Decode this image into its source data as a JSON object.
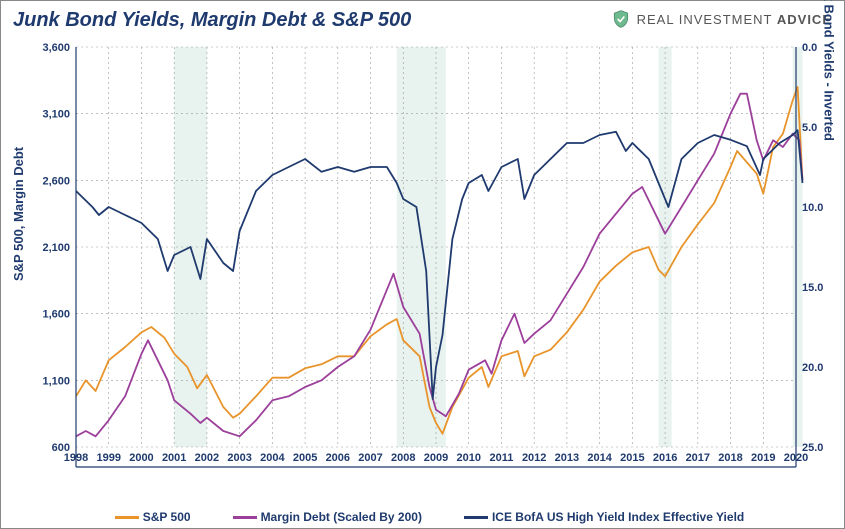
{
  "title": "Junk Bond Yields, Margin Debt & S&P 500",
  "logo": {
    "text": "REAL INVESTMENT ADVICE",
    "bold_word": "ADVICE"
  },
  "chart": {
    "type": "line",
    "background_color": "#ffffff",
    "shaded_color": "#e8f2ee",
    "grid_color": "#999999",
    "axis_color": "#1f3a6e",
    "x": {
      "min": 1998,
      "max": 2020,
      "step": 1,
      "labels": [
        1998,
        1999,
        2000,
        2001,
        2002,
        2003,
        2004,
        2005,
        2006,
        2007,
        2008,
        2009,
        2010,
        2011,
        2012,
        2013,
        2014,
        2015,
        2016,
        2017,
        2018,
        2019,
        2020
      ]
    },
    "y_left": {
      "label": "S&P 500, Margin Debt",
      "min": 600,
      "max": 3600,
      "step": 500,
      "ticks": [
        600,
        1100,
        1600,
        2100,
        2600,
        3100,
        3600
      ]
    },
    "y_right": {
      "label": "Junk Bond Yields - Inverted",
      "min_display": 0.0,
      "max_display": 25.0,
      "step": 5.0,
      "ticks": [
        0.0,
        5.0,
        10.0,
        15.0,
        20.0,
        25.0
      ],
      "inverted": true
    },
    "shaded_ranges": [
      [
        2001.0,
        2002.0
      ],
      [
        2007.8,
        2009.3
      ],
      [
        2015.8,
        2016.2
      ],
      [
        2019.9,
        2020.2
      ]
    ],
    "series": [
      {
        "name": "S&P 500",
        "axis": "left",
        "color": "#e8942b",
        "width": 1.8,
        "points": [
          [
            1998.0,
            980
          ],
          [
            1998.3,
            1100
          ],
          [
            1998.6,
            1020
          ],
          [
            1999.0,
            1250
          ],
          [
            1999.5,
            1350
          ],
          [
            2000.0,
            1460
          ],
          [
            2000.3,
            1500
          ],
          [
            2000.7,
            1420
          ],
          [
            2001.0,
            1300
          ],
          [
            2001.4,
            1200
          ],
          [
            2001.7,
            1040
          ],
          [
            2002.0,
            1140
          ],
          [
            2002.5,
            900
          ],
          [
            2002.8,
            820
          ],
          [
            2003.0,
            850
          ],
          [
            2003.5,
            980
          ],
          [
            2004.0,
            1120
          ],
          [
            2004.5,
            1120
          ],
          [
            2005.0,
            1190
          ],
          [
            2005.5,
            1220
          ],
          [
            2006.0,
            1280
          ],
          [
            2006.5,
            1280
          ],
          [
            2007.0,
            1430
          ],
          [
            2007.5,
            1520
          ],
          [
            2007.8,
            1560
          ],
          [
            2008.0,
            1400
          ],
          [
            2008.5,
            1280
          ],
          [
            2008.8,
            900
          ],
          [
            2009.0,
            780
          ],
          [
            2009.2,
            700
          ],
          [
            2009.5,
            900
          ],
          [
            2010.0,
            1120
          ],
          [
            2010.4,
            1200
          ],
          [
            2010.6,
            1050
          ],
          [
            2011.0,
            1280
          ],
          [
            2011.5,
            1320
          ],
          [
            2011.7,
            1130
          ],
          [
            2012.0,
            1280
          ],
          [
            2012.5,
            1330
          ],
          [
            2013.0,
            1460
          ],
          [
            2013.5,
            1630
          ],
          [
            2014.0,
            1840
          ],
          [
            2014.5,
            1960
          ],
          [
            2015.0,
            2060
          ],
          [
            2015.5,
            2100
          ],
          [
            2015.8,
            1930
          ],
          [
            2016.0,
            1880
          ],
          [
            2016.5,
            2100
          ],
          [
            2017.0,
            2270
          ],
          [
            2017.5,
            2430
          ],
          [
            2018.0,
            2700
          ],
          [
            2018.2,
            2820
          ],
          [
            2018.8,
            2650
          ],
          [
            2019.0,
            2500
          ],
          [
            2019.3,
            2850
          ],
          [
            2019.6,
            2950
          ],
          [
            2019.9,
            3200
          ],
          [
            2020.05,
            3300
          ],
          [
            2020.2,
            2600
          ]
        ]
      },
      {
        "name": "Margin Debt (Scaled By 200)",
        "axis": "left",
        "color": "#9b3f9b",
        "width": 1.8,
        "points": [
          [
            1998.0,
            680
          ],
          [
            1998.3,
            720
          ],
          [
            1998.6,
            680
          ],
          [
            1999.0,
            800
          ],
          [
            1999.5,
            980
          ],
          [
            2000.0,
            1300
          ],
          [
            2000.2,
            1400
          ],
          [
            2000.5,
            1250
          ],
          [
            2000.8,
            1100
          ],
          [
            2001.0,
            950
          ],
          [
            2001.5,
            850
          ],
          [
            2001.8,
            780
          ],
          [
            2002.0,
            820
          ],
          [
            2002.5,
            720
          ],
          [
            2003.0,
            680
          ],
          [
            2003.5,
            800
          ],
          [
            2004.0,
            950
          ],
          [
            2004.5,
            980
          ],
          [
            2005.0,
            1050
          ],
          [
            2005.5,
            1100
          ],
          [
            2006.0,
            1200
          ],
          [
            2006.5,
            1280
          ],
          [
            2007.0,
            1480
          ],
          [
            2007.5,
            1780
          ],
          [
            2007.7,
            1900
          ],
          [
            2008.0,
            1650
          ],
          [
            2008.5,
            1450
          ],
          [
            2008.8,
            1050
          ],
          [
            2009.0,
            880
          ],
          [
            2009.3,
            830
          ],
          [
            2009.7,
            1000
          ],
          [
            2010.0,
            1180
          ],
          [
            2010.5,
            1250
          ],
          [
            2010.7,
            1150
          ],
          [
            2011.0,
            1400
          ],
          [
            2011.4,
            1600
          ],
          [
            2011.7,
            1380
          ],
          [
            2012.0,
            1450
          ],
          [
            2012.5,
            1550
          ],
          [
            2013.0,
            1750
          ],
          [
            2013.5,
            1950
          ],
          [
            2014.0,
            2200
          ],
          [
            2014.5,
            2350
          ],
          [
            2015.0,
            2500
          ],
          [
            2015.3,
            2550
          ],
          [
            2015.8,
            2300
          ],
          [
            2016.0,
            2200
          ],
          [
            2016.5,
            2400
          ],
          [
            2017.0,
            2600
          ],
          [
            2017.5,
            2800
          ],
          [
            2018.0,
            3100
          ],
          [
            2018.3,
            3250
          ],
          [
            2018.5,
            3250
          ],
          [
            2018.8,
            2900
          ],
          [
            2019.0,
            2750
          ],
          [
            2019.3,
            2900
          ],
          [
            2019.6,
            2850
          ],
          [
            2019.9,
            2950
          ],
          [
            2020.1,
            2900
          ],
          [
            2020.2,
            2600
          ]
        ]
      },
      {
        "name": "ICE BofA US High Yield Index Effective Yield",
        "axis": "right",
        "color": "#1f3a6e",
        "width": 1.8,
        "points": [
          [
            1998.0,
            9.0
          ],
          [
            1998.5,
            10.0
          ],
          [
            1998.7,
            10.5
          ],
          [
            1999.0,
            10.0
          ],
          [
            1999.5,
            10.5
          ],
          [
            2000.0,
            11.0
          ],
          [
            2000.5,
            12.0
          ],
          [
            2000.8,
            14.0
          ],
          [
            2001.0,
            13.0
          ],
          [
            2001.5,
            12.5
          ],
          [
            2001.8,
            14.5
          ],
          [
            2002.0,
            12.0
          ],
          [
            2002.5,
            13.5
          ],
          [
            2002.8,
            14.0
          ],
          [
            2003.0,
            11.5
          ],
          [
            2003.5,
            9.0
          ],
          [
            2004.0,
            8.0
          ],
          [
            2004.5,
            7.5
          ],
          [
            2005.0,
            7.0
          ],
          [
            2005.5,
            7.8
          ],
          [
            2006.0,
            7.5
          ],
          [
            2006.5,
            7.8
          ],
          [
            2007.0,
            7.5
          ],
          [
            2007.5,
            7.5
          ],
          [
            2007.8,
            8.5
          ],
          [
            2008.0,
            9.5
          ],
          [
            2008.4,
            10.0
          ],
          [
            2008.7,
            14.0
          ],
          [
            2008.9,
            22.0
          ],
          [
            2009.0,
            20.0
          ],
          [
            2009.2,
            18.0
          ],
          [
            2009.5,
            12.0
          ],
          [
            2009.8,
            9.5
          ],
          [
            2010.0,
            8.5
          ],
          [
            2010.4,
            8.0
          ],
          [
            2010.6,
            9.0
          ],
          [
            2011.0,
            7.5
          ],
          [
            2011.5,
            7.0
          ],
          [
            2011.7,
            9.5
          ],
          [
            2012.0,
            8.0
          ],
          [
            2012.5,
            7.0
          ],
          [
            2013.0,
            6.0
          ],
          [
            2013.5,
            6.0
          ],
          [
            2014.0,
            5.5
          ],
          [
            2014.5,
            5.3
          ],
          [
            2014.8,
            6.5
          ],
          [
            2015.0,
            6.0
          ],
          [
            2015.5,
            7.0
          ],
          [
            2015.9,
            9.0
          ],
          [
            2016.1,
            10.0
          ],
          [
            2016.5,
            7.0
          ],
          [
            2017.0,
            6.0
          ],
          [
            2017.5,
            5.5
          ],
          [
            2018.0,
            5.8
          ],
          [
            2018.5,
            6.2
          ],
          [
            2018.9,
            8.0
          ],
          [
            2019.0,
            7.0
          ],
          [
            2019.5,
            6.0
          ],
          [
            2019.9,
            5.5
          ],
          [
            2020.05,
            5.2
          ],
          [
            2020.2,
            8.5
          ]
        ]
      }
    ],
    "legend": [
      {
        "label": "S&P 500",
        "color": "#e8942b"
      },
      {
        "label": "Margin Debt (Scaled By 200)",
        "color": "#9b3f9b"
      },
      {
        "label": "ICE BofA US High Yield Index Effective Yield",
        "color": "#1f3a6e"
      }
    ]
  }
}
